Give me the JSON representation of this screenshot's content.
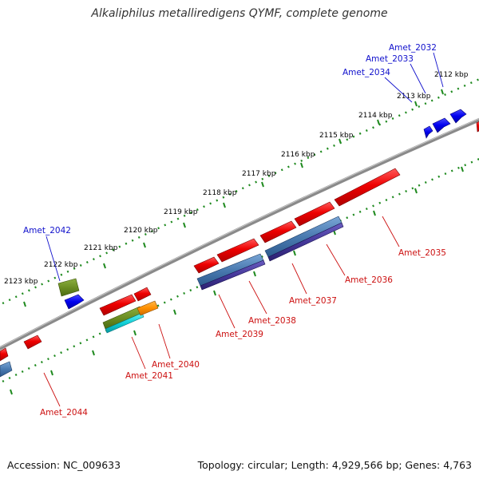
{
  "title": "Alkaliphilus metalliredigens QYMF, complete genome",
  "footer": {
    "accession": "Accession: NC_009633",
    "summary": "Topology: circular; Length: 4,929,566 bp; Genes: 4,763"
  },
  "colors": {
    "backbone": "#8a8a8a",
    "tick_track": "#1f8a1f",
    "label_forward": "#1010cc",
    "label_reverse": "#cc1010"
  },
  "kbp_labels": [
    "2112 kbp",
    "2113 kbp",
    "2114 kbp",
    "2115 kbp",
    "2116 kbp",
    "2117 kbp",
    "2118 kbp",
    "2119 kbp",
    "2120 kbp",
    "2121 kbp",
    "2122 kbp",
    "2123 kbp"
  ],
  "gene_labels": [
    {
      "text": "Amet_2032",
      "strand": "forward"
    },
    {
      "text": "Amet_2033",
      "strand": "forward"
    },
    {
      "text": "Amet_2034",
      "strand": "forward"
    },
    {
      "text": "Amet_2042",
      "strand": "forward"
    },
    {
      "text": "Amet_2035",
      "strand": "reverse"
    },
    {
      "text": "Amet_2036",
      "strand": "reverse"
    },
    {
      "text": "Amet_2037",
      "strand": "reverse"
    },
    {
      "text": "Amet_2038",
      "strand": "reverse"
    },
    {
      "text": "Amet_2039",
      "strand": "reverse"
    },
    {
      "text": "Amet_2040",
      "strand": "reverse"
    },
    {
      "text": "Amet_2041",
      "strand": "reverse"
    },
    {
      "text": "Amet_2044",
      "strand": "reverse"
    }
  ]
}
